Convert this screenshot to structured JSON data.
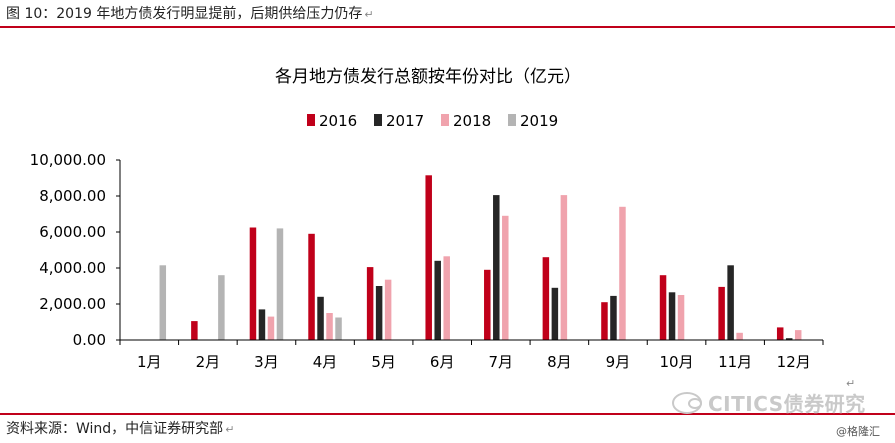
{
  "caption": "图 10：2019 年地方债发行明显提前，后期供给压力仍存",
  "source": "资料来源：Wind，中信证券研究部",
  "watermark": "CITICS债券研究",
  "credit": "@格隆汇",
  "para_mark": "↵",
  "colors": {
    "accent": "#c0001a",
    "2016": "#c0001a",
    "2017": "#262626",
    "2018": "#f0a3ad",
    "2019": "#b4b4b4"
  },
  "chart_data": {
    "type": "bar",
    "title": "各月地方债发行总额按年份对比（亿元）",
    "xlabel": "",
    "ylabel": "",
    "categories": [
      "1月",
      "2月",
      "3月",
      "4月",
      "5月",
      "6月",
      "7月",
      "8月",
      "9月",
      "10月",
      "11月",
      "12月"
    ],
    "series": [
      {
        "name": "2016",
        "values": [
          0,
          1050,
          6250,
          5900,
          4050,
          9150,
          3900,
          4600,
          2100,
          3600,
          2950,
          700
        ]
      },
      {
        "name": "2017",
        "values": [
          0,
          0,
          1700,
          2400,
          3000,
          4400,
          8050,
          2900,
          2450,
          2650,
          4150,
          100
        ]
      },
      {
        "name": "2018",
        "values": [
          0,
          0,
          1300,
          1500,
          3350,
          4650,
          6900,
          8050,
          7400,
          2500,
          400,
          550
        ]
      },
      {
        "name": "2019",
        "values": [
          4150,
          3600,
          6200,
          1250,
          0,
          0,
          0,
          0,
          0,
          0,
          0,
          0
        ]
      }
    ],
    "ylim": [
      0,
      10000
    ],
    "yticks": [
      0,
      2000,
      4000,
      6000,
      8000,
      10000
    ],
    "ytick_labels": [
      "0.00",
      "2,000.00",
      "4,000.00",
      "6,000.00",
      "8,000.00",
      "10,000.00"
    ],
    "grid": false,
    "legend_position": "top"
  }
}
